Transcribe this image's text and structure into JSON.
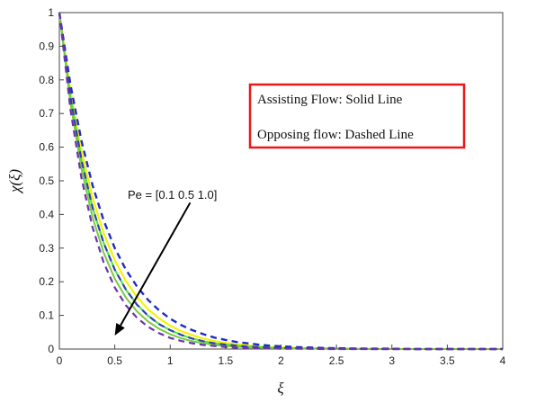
{
  "chart_data": {
    "type": "line",
    "xlabel": "ξ",
    "ylabel": "χ(ξ)",
    "xlim": [
      0,
      4
    ],
    "ylim": [
      0,
      1
    ],
    "xticks": [
      "0",
      "0.5",
      "1",
      "1.5",
      "2",
      "2.5",
      "3",
      "3.5",
      "4"
    ],
    "yticks": [
      "0",
      "0.1",
      "0.2",
      "0.3",
      "0.4",
      "0.5",
      "0.6",
      "0.7",
      "0.8",
      "0.9",
      "1"
    ],
    "grid": false,
    "legend_box": {
      "line1": "Assisting Flow:  Solid Line",
      "line2": "Opposing flow: Dashed Line",
      "border_color": "#e8191b"
    },
    "annotation": {
      "text": "Pe = [0.1  0.5  1.0]",
      "arrow_from": [
        1.18,
        0.435
      ],
      "arrow_to": [
        0.5,
        0.04
      ]
    },
    "x": [
      0,
      0.1,
      0.2,
      0.3,
      0.4,
      0.5,
      0.6,
      0.7,
      0.8,
      0.9,
      1.0,
      1.1,
      1.2,
      1.3,
      1.4,
      1.5,
      1.6,
      1.7,
      1.8,
      1.9,
      2.0,
      2.2,
      2.4,
      2.6,
      2.8,
      3.0,
      3.2,
      3.4,
      3.6,
      3.8,
      4.0
    ],
    "series": [
      {
        "style": "solid",
        "color": "#f2f20a",
        "width": 2.2,
        "values": [
          1,
          0.766,
          0.587,
          0.449,
          0.344,
          0.264,
          0.202,
          0.155,
          0.118,
          0.091,
          0.069,
          0.053,
          0.041,
          0.031,
          0.024,
          0.018,
          0.014,
          0.011,
          0.008,
          0.006,
          0.005,
          0.003,
          0.002,
          0.001,
          0.001,
          0.0,
          0.0,
          0.0,
          0.0,
          0.0,
          0.0
        ]
      },
      {
        "style": "solid",
        "color": "#3de83d",
        "width": 2.0,
        "values": [
          1,
          0.749,
          0.561,
          0.42,
          0.315,
          0.236,
          0.177,
          0.132,
          0.099,
          0.074,
          0.056,
          0.042,
          0.031,
          0.023,
          0.017,
          0.013,
          0.01,
          0.007,
          0.006,
          0.004,
          0.003,
          0.002,
          0.001,
          0.001,
          0.0,
          0.0,
          0.0,
          0.0,
          0.0,
          0.0,
          0.0
        ]
      },
      {
        "style": "solid",
        "color": "#7ac943",
        "width": 2.0,
        "values": [
          1,
          0.731,
          0.535,
          0.391,
          0.286,
          0.209,
          0.153,
          0.112,
          0.082,
          0.06,
          0.044,
          0.032,
          0.023,
          0.017,
          0.012,
          0.009,
          0.007,
          0.005,
          0.004,
          0.003,
          0.002,
          0.001,
          0.001,
          0.0,
          0.0,
          0.0,
          0.0,
          0.0,
          0.0,
          0.0,
          0.0
        ]
      },
      {
        "style": "dashed",
        "color": "#1f2bc4",
        "width": 2.4,
        "values": [
          1,
          0.786,
          0.618,
          0.486,
          0.382,
          0.3,
          0.236,
          0.186,
          0.146,
          0.115,
          0.09,
          0.071,
          0.056,
          0.044,
          0.034,
          0.027,
          0.021,
          0.017,
          0.013,
          0.01,
          0.008,
          0.005,
          0.003,
          0.002,
          0.001,
          0.001,
          0.0,
          0.0,
          0.0,
          0.0,
          0.0
        ]
      },
      {
        "style": "dashed",
        "color": "#3a3ab0",
        "width": 2.2,
        "values": [
          1,
          0.749,
          0.561,
          0.42,
          0.315,
          0.236,
          0.177,
          0.132,
          0.099,
          0.074,
          0.056,
          0.042,
          0.031,
          0.023,
          0.017,
          0.013,
          0.01,
          0.007,
          0.006,
          0.004,
          0.003,
          0.002,
          0.001,
          0.001,
          0.0,
          0.0,
          0.0,
          0.0,
          0.0,
          0.0,
          0.0
        ]
      },
      {
        "style": "dashed",
        "color": "#6a35a8",
        "width": 2.2,
        "values": [
          1,
          0.712,
          0.507,
          0.361,
          0.257,
          0.183,
          0.13,
          0.093,
          0.066,
          0.047,
          0.033,
          0.024,
          0.017,
          0.012,
          0.009,
          0.006,
          0.004,
          0.003,
          0.002,
          0.002,
          0.001,
          0.001,
          0.0,
          0.0,
          0.0,
          0.0,
          0.0,
          0.0,
          0.0,
          0.0,
          0.0
        ]
      }
    ]
  }
}
